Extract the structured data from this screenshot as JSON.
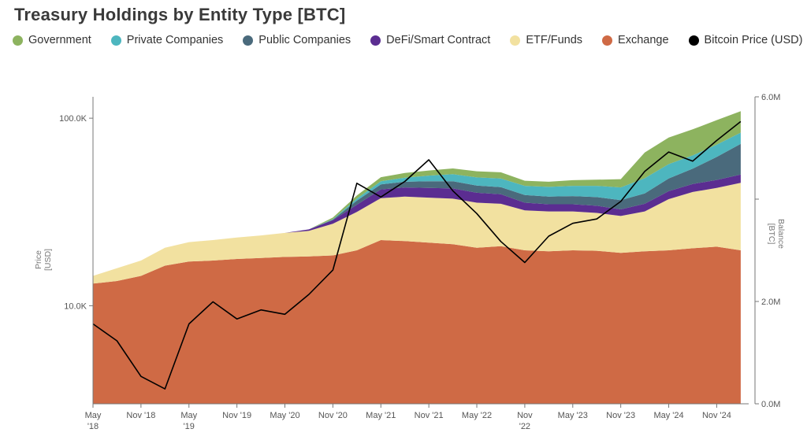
{
  "chart_data": {
    "type": "area",
    "title": "Treasury Holdings by Entity Type [BTC]",
    "y_left_label": [
      "Price",
      "[USD]"
    ],
    "y_right_label": [
      "Balance",
      "[BTC]"
    ],
    "y_left_scale": "log",
    "y_left_ticks": [
      "10.0K",
      "100.0K"
    ],
    "y_left_tick_values": [
      10000,
      100000
    ],
    "y_left_range": [
      3000,
      130000
    ],
    "y_right_ticks": [
      "0.0M",
      "2.0M",
      "6.0M"
    ],
    "y_right_tick_values": [
      0,
      2000000,
      6000000
    ],
    "y_right_range": [
      0,
      6000000
    ],
    "x_ticks": [
      {
        "label": "May",
        "label2": "'18",
        "date": "2018-05"
      },
      {
        "label": "Nov '18",
        "label2": "",
        "date": "2018-11"
      },
      {
        "label": "May",
        "label2": "'19",
        "date": "2019-05"
      },
      {
        "label": "Nov '19",
        "label2": "",
        "date": "2019-11"
      },
      {
        "label": "May '20",
        "label2": "",
        "date": "2020-05"
      },
      {
        "label": "Nov '20",
        "label2": "",
        "date": "2020-11"
      },
      {
        "label": "May '21",
        "label2": "",
        "date": "2021-05"
      },
      {
        "label": "Nov '21",
        "label2": "",
        "date": "2021-11"
      },
      {
        "label": "May '22",
        "label2": "",
        "date": "2022-05"
      },
      {
        "label": "Nov",
        "label2": "'22",
        "date": "2022-11"
      },
      {
        "label": "May '23",
        "label2": "",
        "date": "2023-05"
      },
      {
        "label": "Nov '23",
        "label2": "",
        "date": "2023-11"
      },
      {
        "label": "May '24",
        "label2": "",
        "date": "2024-05"
      },
      {
        "label": "Nov '24",
        "label2": "",
        "date": "2024-11"
      }
    ],
    "x_range": [
      "2018-05",
      "2025-03"
    ],
    "legend_position": "top-left",
    "series": [
      {
        "name": "Government",
        "color": "#8db35f"
      },
      {
        "name": "Private Companies",
        "color": "#4db6bf"
      },
      {
        "name": "Public Companies",
        "color": "#4a6a7c"
      },
      {
        "name": "DeFi/Smart Contract",
        "color": "#5b2d91"
      },
      {
        "name": "ETF/Funds",
        "color": "#f2e1a0"
      },
      {
        "name": "Exchange",
        "color": "#cf6a45"
      },
      {
        "name": "Bitcoin Price (USD)",
        "color": "#000000"
      }
    ],
    "dates": [
      "2018-05",
      "2018-08",
      "2018-11",
      "2019-02",
      "2019-05",
      "2019-08",
      "2019-11",
      "2020-02",
      "2020-05",
      "2020-08",
      "2020-11",
      "2021-02",
      "2021-05",
      "2021-08",
      "2021-11",
      "2022-02",
      "2022-05",
      "2022-08",
      "2022-11",
      "2023-02",
      "2023-05",
      "2023-08",
      "2023-11",
      "2024-02",
      "2024-05",
      "2024-08",
      "2024-11",
      "2025-02"
    ],
    "stack_units": "BTC",
    "exchange": [
      2350000,
      2400000,
      2500000,
      2700000,
      2780000,
      2800000,
      2830000,
      2850000,
      2870000,
      2880000,
      2900000,
      3000000,
      3200000,
      3180000,
      3150000,
      3120000,
      3050000,
      3080000,
      3000000,
      2980000,
      3000000,
      2990000,
      2950000,
      2980000,
      3000000,
      3040000,
      3070000,
      3000000
    ],
    "etf_funds": [
      150000,
      250000,
      300000,
      350000,
      380000,
      400000,
      420000,
      440000,
      470000,
      500000,
      620000,
      750000,
      820000,
      870000,
      880000,
      890000,
      880000,
      830000,
      780000,
      780000,
      760000,
      740000,
      720000,
      780000,
      1000000,
      1100000,
      1150000,
      1320000
    ],
    "defi": [
      0,
      0,
      0,
      0,
      0,
      0,
      0,
      0,
      0,
      30000,
      70000,
      140000,
      170000,
      180000,
      190000,
      200000,
      195000,
      185000,
      150000,
      140000,
      140000,
      140000,
      130000,
      150000,
      155000,
      155000,
      155000,
      160000
    ],
    "public_companies": [
      0,
      0,
      0,
      0,
      0,
      0,
      0,
      0,
      0,
      0,
      10000,
      80000,
      100000,
      110000,
      130000,
      140000,
      140000,
      140000,
      150000,
      150000,
      160000,
      170000,
      180000,
      200000,
      250000,
      300000,
      450000,
      600000
    ],
    "private_companies": [
      0,
      0,
      0,
      0,
      0,
      0,
      0,
      0,
      0,
      0,
      10000,
      40000,
      60000,
      80000,
      110000,
      140000,
      160000,
      170000,
      180000,
      190000,
      200000,
      220000,
      250000,
      300000,
      280000,
      260000,
      240000,
      220000
    ],
    "government": [
      0,
      0,
      0,
      0,
      0,
      0,
      0,
      0,
      0,
      0,
      30000,
      60000,
      80000,
      90000,
      100000,
      110000,
      120000,
      120000,
      100000,
      100000,
      110000,
      120000,
      160000,
      500000,
      520000,
      510000,
      480000,
      420000
    ],
    "bitcoin_price_usd": [
      8000,
      6500,
      4200,
      3600,
      8000,
      10500,
      8500,
      9500,
      9000,
      11500,
      15500,
      45000,
      38000,
      46000,
      60000,
      41000,
      31000,
      22000,
      17000,
      23500,
      27500,
      29000,
      36000,
      52000,
      66000,
      59000,
      76000,
      96000
    ]
  }
}
